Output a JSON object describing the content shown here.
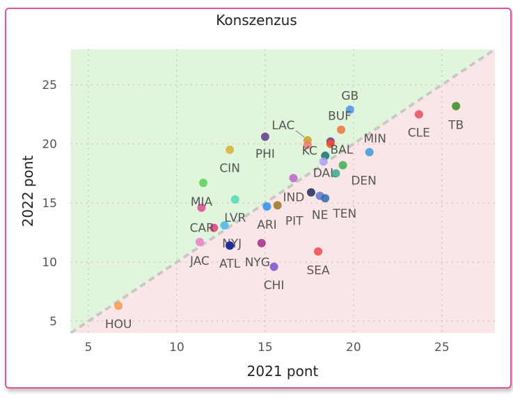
{
  "chart_data": {
    "type": "scatter",
    "title": "Konszenzus",
    "xlabel": "2021 pont",
    "ylabel": "2022 pont",
    "xlim": [
      4,
      28
    ],
    "ylim": [
      4,
      28
    ],
    "xticks": [
      5,
      10,
      15,
      20,
      25
    ],
    "yticks": [
      5,
      10,
      15,
      20,
      25
    ],
    "grid": true,
    "reference_line": "y = x (dashed)",
    "region_colors": {
      "above": "#e0f5dc",
      "below": "#fae6e6",
      "line": "#c8c8c8"
    },
    "points": [
      {
        "label": "GB",
        "x": 19.8,
        "y": 22.9,
        "color": "#4a90f0"
      },
      {
        "label": "LAC",
        "x": 17.4,
        "y": 20.3,
        "color": "#c8a020"
      },
      {
        "label": "KC",
        "x": 17.4,
        "y": 19.9,
        "color": "#f07a7a"
      },
      {
        "label": "BUF",
        "x": 19.3,
        "y": 21.2,
        "color": "#e8783a"
      },
      {
        "label": "",
        "x": 18.7,
        "y": 20.2,
        "color": "#7a2a8a"
      },
      {
        "label": "BAL",
        "x": 18.7,
        "y": 20.0,
        "color": "#f0502a"
      },
      {
        "label": "",
        "x": 18.4,
        "y": 19.0,
        "color": "#1a6e6e"
      },
      {
        "label": "DAL",
        "x": 18.3,
        "y": 18.5,
        "color": "#b0a0f8"
      },
      {
        "label": "MIN",
        "x": 20.9,
        "y": 19.3,
        "color": "#3a9ad8"
      },
      {
        "label": "DEN",
        "x": 19.4,
        "y": 18.2,
        "color": "#3aae4a"
      },
      {
        "label": "",
        "x": 19.0,
        "y": 17.5,
        "color": "#3aa890"
      },
      {
        "label": "",
        "x": 16.6,
        "y": 17.1,
        "color": "#c060c8"
      },
      {
        "label": "IND",
        "x": 17.6,
        "y": 15.9,
        "color": "#1a2e5a"
      },
      {
        "label": "NE",
        "x": 18.1,
        "y": 15.6,
        "color": "#5a78d0"
      },
      {
        "label": "TEN",
        "x": 18.4,
        "y": 15.4,
        "color": "#2a6aaa"
      },
      {
        "label": "ARI",
        "x": 15.1,
        "y": 14.7,
        "color": "#2a90f0"
      },
      {
        "label": "PIT",
        "x": 15.7,
        "y": 14.8,
        "color": "#9a7420"
      },
      {
        "label": "PHI",
        "x": 15.0,
        "y": 20.6,
        "color": "#5a3a8a"
      },
      {
        "label": "CIN",
        "x": 13.0,
        "y": 19.5,
        "color": "#d8b030"
      },
      {
        "label": "",
        "x": 11.5,
        "y": 16.7,
        "color": "#5ad05a"
      },
      {
        "label": "MIA",
        "x": 11.4,
        "y": 14.6,
        "color": "#e04898"
      },
      {
        "label": "LVR",
        "x": 13.3,
        "y": 15.3,
        "color": "#50d8b8"
      },
      {
        "label": "CAR",
        "x": 12.1,
        "y": 12.9,
        "color": "#e83880"
      },
      {
        "label": "",
        "x": 12.7,
        "y": 13.1,
        "color": "#40b8f0"
      },
      {
        "label": "JAC",
        "x": 11.3,
        "y": 11.7,
        "color": "#f078c8"
      },
      {
        "label": "NYJ",
        "x": 13.0,
        "y": 11.4,
        "color": "#1a2a9a"
      },
      {
        "label": "ATL",
        "x": 13.0,
        "y": 11.4,
        "color": "#1a2a9a"
      },
      {
        "label": "NYG",
        "x": 14.8,
        "y": 11.6,
        "color": "#a02a8a"
      },
      {
        "label": "CHI",
        "x": 15.5,
        "y": 9.6,
        "color": "#7a50c8"
      },
      {
        "label": "SEA",
        "x": 18.0,
        "y": 10.9,
        "color": "#f04848"
      },
      {
        "label": "CLE",
        "x": 23.7,
        "y": 22.5,
        "color": "#e05060"
      },
      {
        "label": "TB",
        "x": 25.8,
        "y": 23.2,
        "color": "#3a8a2a"
      },
      {
        "label": "HOU",
        "x": 6.7,
        "y": 6.3,
        "color": "#f89850"
      }
    ]
  }
}
